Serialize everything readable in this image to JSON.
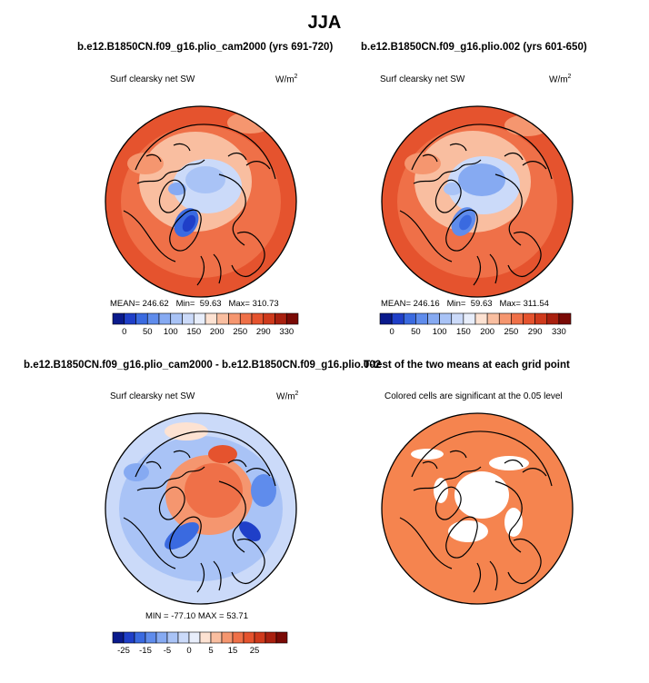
{
  "main_title": "JJA",
  "panels": [
    {
      "title": "b.e12.B1850CN.f09_g16.plio_cam2000 (yrs 691-720)",
      "variable": "Surf clearsky net SW",
      "units": "W/m",
      "units_exp": "2",
      "mean_label": "MEAN=",
      "mean": "246.62",
      "min_label": "Min=",
      "min": "59.63",
      "max_label": "Max=",
      "max": "310.73"
    },
    {
      "title": "b.e12.B1850CN.f09_g16.plio.002 (yrs 601-650)",
      "variable": "Surf clearsky net SW",
      "units": "W/m",
      "units_exp": "2",
      "mean_label": "MEAN=",
      "mean": "246.16",
      "min_label": "Min=",
      "min": "59.63",
      "max_label": "Max=",
      "max": "311.54"
    },
    {
      "title": "b.e12.B1850CN.f09_g16.plio_cam2000 - b.e12.B1850CN.f09_g16.plio.002",
      "variable": "Surf clearsky net SW",
      "units": "W/m",
      "units_exp": "2",
      "stats_text": "MIN = -77.10  MAX =  53.71"
    },
    {
      "title": "T-test of the two means at each grid point",
      "variable": "Colored cells are significant at the 0.05 level"
    }
  ],
  "colorbars": {
    "absolute": {
      "labels": [
        "0",
        "50",
        "100",
        "150",
        "200",
        "250",
        "290",
        "330"
      ],
      "colors": [
        "#0a1a8c",
        "#1f3fc8",
        "#3a6ae0",
        "#5f8cec",
        "#86aaf2",
        "#a9c3f6",
        "#cbdaf9",
        "#e8eefb",
        "#fde2d2",
        "#f9bea0",
        "#f5966f",
        "#ef7048",
        "#e5532e",
        "#cf3a1c",
        "#a9200f",
        "#7a0a05"
      ]
    },
    "difference": {
      "labels": [
        "-25",
        "-15",
        "-5",
        "0",
        "5",
        "15",
        "25"
      ],
      "colors": [
        "#0a1a8c",
        "#1f3fc8",
        "#3a6ae0",
        "#5f8cec",
        "#86aaf2",
        "#a9c3f6",
        "#cbdaf9",
        "#e8eefb",
        "#fde2d2",
        "#f9bea0",
        "#f5966f",
        "#ef7048",
        "#e5532e",
        "#cf3a1c",
        "#a9200f",
        "#7a0a05"
      ]
    }
  },
  "chart_data": [
    {
      "type": "heatmap",
      "projection": "north polar stereographic",
      "title": "b.e12.B1850CN.f09_g16.plio_cam2000 (yrs 691-720)",
      "season": "JJA",
      "variable": "Surf clearsky net SW",
      "units": "W/m^2",
      "mean": 246.62,
      "min": 59.63,
      "max": 310.73,
      "colorbar_ticks": [
        0,
        50,
        100,
        150,
        200,
        250,
        290,
        330
      ]
    },
    {
      "type": "heatmap",
      "projection": "north polar stereographic",
      "title": "b.e12.B1850CN.f09_g16.plio.002 (yrs 601-650)",
      "season": "JJA",
      "variable": "Surf clearsky net SW",
      "units": "W/m^2",
      "mean": 246.16,
      "min": 59.63,
      "max": 311.54,
      "colorbar_ticks": [
        0,
        50,
        100,
        150,
        200,
        250,
        290,
        330
      ]
    },
    {
      "type": "heatmap",
      "projection": "north polar stereographic",
      "title": "b.e12.B1850CN.f09_g16.plio_cam2000 - b.e12.B1850CN.f09_g16.plio.002",
      "variable": "Surf clearsky net SW",
      "units": "W/m^2",
      "min": -77.1,
      "max": 53.71,
      "colorbar_ticks": [
        -25,
        -15,
        -5,
        0,
        5,
        15,
        25
      ]
    },
    {
      "type": "heatmap",
      "projection": "north polar stereographic",
      "title": "T-test of the two means at each grid point",
      "note": "Colored cells are significant at the 0.05 level",
      "significance_level": 0.05
    }
  ]
}
